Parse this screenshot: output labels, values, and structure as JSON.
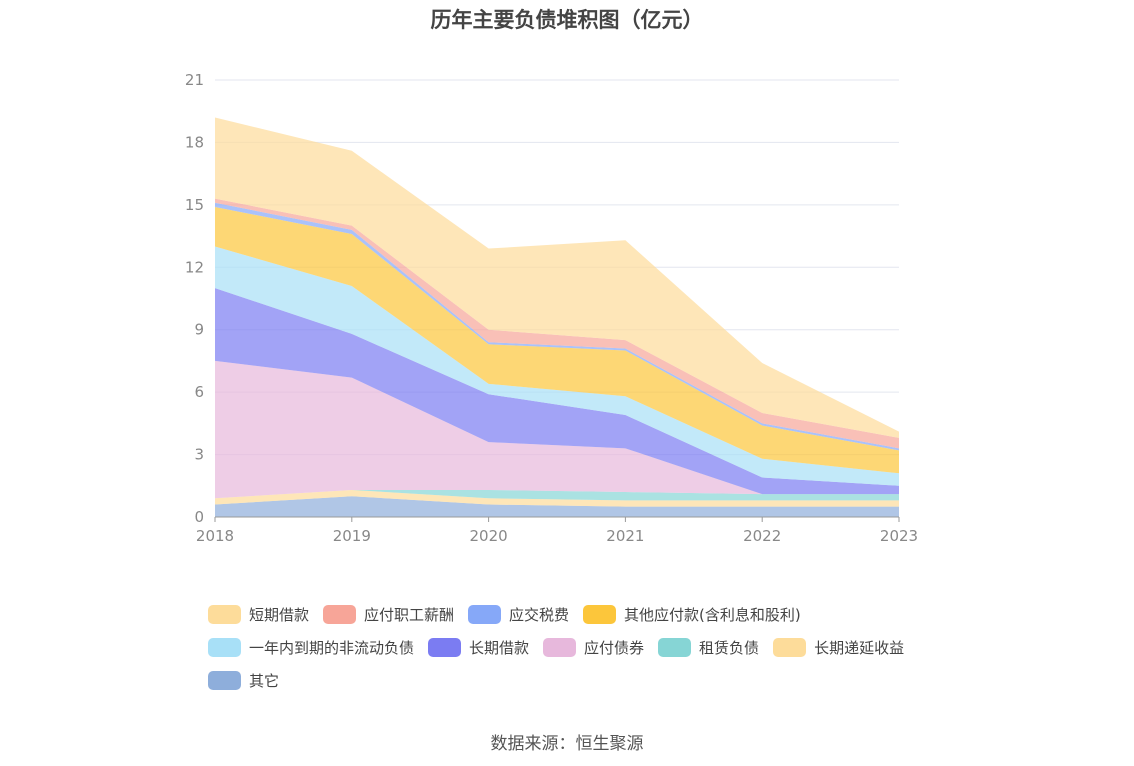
{
  "title": "历年主要负债堆积图（亿元）",
  "source": "数据来源：恒生聚源",
  "chart_data": {
    "type": "area",
    "stacked": true,
    "categories": [
      "2018",
      "2019",
      "2020",
      "2021",
      "2022",
      "2023"
    ],
    "ylim": [
      0,
      21
    ],
    "yticks": [
      0,
      3,
      6,
      9,
      12,
      15,
      18,
      21
    ],
    "grid": true,
    "legend_position": "bottom",
    "series": [
      {
        "name": "其它",
        "color": "#8eaedb",
        "values": [
          0.6,
          1.0,
          0.6,
          0.5,
          0.5,
          0.5
        ]
      },
      {
        "name": "长期递延收益",
        "color": "#fddc9a",
        "values": [
          0.3,
          0.3,
          0.3,
          0.3,
          0.3,
          0.3
        ]
      },
      {
        "name": "租赁负债",
        "color": "#86d5d5",
        "values": [
          0.0,
          0.0,
          0.4,
          0.4,
          0.3,
          0.3
        ]
      },
      {
        "name": "应付债券",
        "color": "#e7b8dc",
        "values": [
          6.6,
          5.4,
          2.3,
          2.1,
          0.0,
          0.0
        ]
      },
      {
        "name": "长期借款",
        "color": "#7b7cf2",
        "values": [
          3.5,
          2.1,
          2.3,
          1.6,
          0.8,
          0.4
        ]
      },
      {
        "name": "一年内到期的非流动负债",
        "color": "#a8e0f7",
        "values": [
          2.0,
          2.3,
          0.5,
          0.9,
          0.9,
          0.6
        ]
      },
      {
        "name": "其他应付款(含利息和股利)",
        "color": "#fcc63b",
        "values": [
          1.9,
          2.5,
          1.9,
          2.2,
          1.6,
          1.1
        ]
      },
      {
        "name": "应交税费",
        "color": "#86a8f8",
        "values": [
          0.2,
          0.2,
          0.1,
          0.1,
          0.1,
          0.1
        ]
      },
      {
        "name": "应付职工薪酬",
        "color": "#f7a598",
        "values": [
          0.2,
          0.2,
          0.6,
          0.4,
          0.5,
          0.5
        ]
      },
      {
        "name": "短期借款",
        "color": "#fddc9a",
        "values": [
          3.9,
          3.6,
          3.9,
          4.8,
          2.4,
          0.3
        ]
      }
    ],
    "legend_rows": [
      [
        "短期借款",
        "应付职工薪酬",
        "应交税费",
        "其他应付款(含利息和股利)"
      ],
      [
        "一年内到期的非流动负债",
        "长期借款",
        "应付债券",
        "租赁负债",
        "长期递延收益"
      ],
      [
        "其它"
      ]
    ]
  }
}
